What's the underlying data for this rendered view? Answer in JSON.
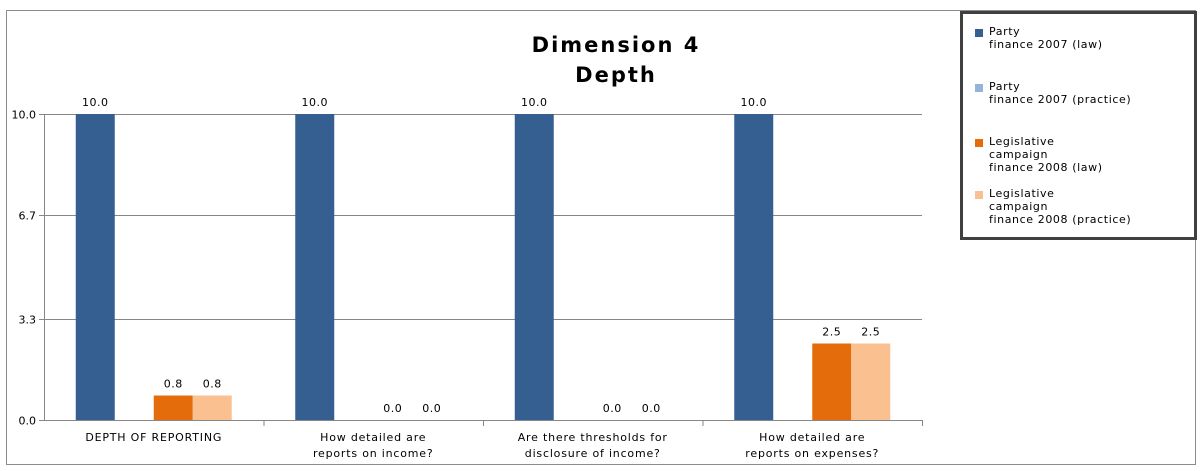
{
  "chart_data": {
    "type": "bar",
    "title_lines": [
      "Dimension 4",
      "Depth"
    ],
    "categories": [
      [
        "DEPTH OF REPORTING"
      ],
      [
        "How detailed are",
        "reports on income?"
      ],
      [
        "Are there thresholds for",
        "disclosure of income?"
      ],
      [
        "How detailed are",
        "reports on expenses?"
      ]
    ],
    "series": [
      {
        "name": "Party\nfinance 2007 (law)",
        "color": "#355f91",
        "values": [
          10.0,
          10.0,
          10.0,
          10.0
        ],
        "labels": [
          "10.0",
          "10.0",
          "10.0",
          "10.0"
        ]
      },
      {
        "name": "Party\nfinance 2007 (practice)",
        "color": "#95b3d7",
        "values": [
          null,
          null,
          null,
          null
        ],
        "labels": [
          "",
          "",
          "",
          ""
        ]
      },
      {
        "name": "Legislative\ncampaign\nfinance 2008 (law)",
        "color": "#e46c0a",
        "values": [
          0.8,
          0.0,
          0.0,
          2.5
        ],
        "labels": [
          "0.8",
          "0.0",
          "0.0",
          "2.5"
        ]
      },
      {
        "name": "Legislative\ncampaign\nfinance 2008 (practice)",
        "color": "#fac090",
        "values": [
          0.8,
          0.0,
          0.0,
          2.5
        ],
        "labels": [
          "0.8",
          "0.0",
          "0.0",
          "2.5"
        ]
      }
    ],
    "yticks": [
      {
        "value": 0.0,
        "label": "0.0"
      },
      {
        "value": 3.3,
        "label": "3.3"
      },
      {
        "value": 6.7,
        "label": "6.7"
      },
      {
        "value": 10.0,
        "label": "10.0"
      }
    ],
    "ylim": [
      0,
      10
    ],
    "grid": true,
    "legend_position": "right"
  }
}
